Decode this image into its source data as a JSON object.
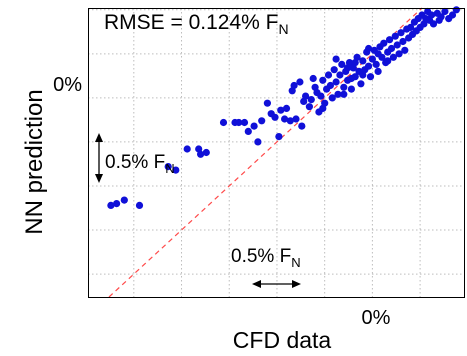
{
  "chart_data": {
    "type": "scatter",
    "title": "",
    "annotation": {
      "text": "RMSE = 0.124% F",
      "subscript": "N"
    },
    "xlabel": "CFD data",
    "ylabel": "NN prediction",
    "x_zero_label": "0%",
    "y_zero_label": "0%",
    "xlim": [
      -1.49,
      0.48
    ],
    "ylim": [
      -1.38,
      0.26
    ],
    "scale_bars": [
      {
        "orientation": "vertical",
        "text": "0.5% F",
        "subscript": "N",
        "length": 0.5
      },
      {
        "orientation": "horizontal",
        "text": "0.5% F",
        "subscript": "N",
        "length": 0.5
      }
    ],
    "reference_line": {
      "style": "dashed",
      "color": "#ff4a4a",
      "slope": 1,
      "intercept": 0
    },
    "grid": true,
    "marker_color": "#1010d8",
    "points": [
      [
        -1.37,
        -0.86
      ],
      [
        -1.34,
        -0.85
      ],
      [
        -1.3,
        -0.83
      ],
      [
        -1.22,
        -0.86
      ],
      [
        -1.07,
        -0.64
      ],
      [
        -1.03,
        -0.66
      ],
      [
        -0.97,
        -0.54
      ],
      [
        -0.91,
        -0.54
      ],
      [
        -0.9,
        -0.57
      ],
      [
        -0.87,
        -0.56
      ],
      [
        -0.78,
        -0.39
      ],
      [
        -0.72,
        -0.39
      ],
      [
        -0.7,
        -0.39
      ],
      [
        -0.67,
        -0.39
      ],
      [
        -0.65,
        -0.44
      ],
      [
        -0.62,
        -0.41
      ],
      [
        -0.6,
        -0.5
      ],
      [
        -0.58,
        -0.38
      ],
      [
        -0.55,
        -0.28
      ],
      [
        -0.53,
        -0.34
      ],
      [
        -0.51,
        -0.36
      ],
      [
        -0.49,
        -0.47
      ],
      [
        -0.48,
        -0.32
      ],
      [
        -0.46,
        -0.37
      ],
      [
        -0.45,
        -0.31
      ],
      [
        -0.43,
        -0.38
      ],
      [
        -0.42,
        -0.21
      ],
      [
        -0.41,
        -0.18
      ],
      [
        -0.4,
        -0.37
      ],
      [
        -0.38,
        -0.16
      ],
      [
        -0.37,
        -0.41
      ],
      [
        -0.35,
        -0.24
      ],
      [
        -0.33,
        -0.3
      ],
      [
        -0.32,
        -0.26
      ],
      [
        -0.3,
        -0.19
      ],
      [
        -0.29,
        -0.22
      ],
      [
        -0.28,
        -0.33
      ],
      [
        -0.27,
        -0.24
      ],
      [
        -0.26,
        -0.15
      ],
      [
        -0.25,
        -0.28
      ],
      [
        -0.24,
        -0.2
      ],
      [
        -0.23,
        -0.12
      ],
      [
        -0.22,
        -0.18
      ],
      [
        -0.21,
        -0.25
      ],
      [
        -0.2,
        -0.09
      ],
      [
        -0.19,
        -0.16
      ],
      [
        -0.18,
        -0.23
      ],
      [
        -0.17,
        -0.12
      ],
      [
        -0.16,
        -0.06
      ],
      [
        -0.15,
        -0.19
      ],
      [
        -0.14,
        -0.1
      ],
      [
        -0.13,
        -0.15
      ],
      [
        -0.12,
        -0.05
      ],
      [
        -0.11,
        -0.2
      ],
      [
        -0.1,
        -0.08
      ],
      [
        -0.09,
        -0.13
      ],
      [
        -0.08,
        -0.02
      ],
      [
        -0.07,
        -0.1
      ],
      [
        -0.06,
        -0.17
      ],
      [
        -0.05,
        -0.04
      ],
      [
        -0.04,
        -0.09
      ],
      [
        -0.03,
        0.01
      ],
      [
        -0.02,
        -0.07
      ],
      [
        -0.01,
        -0.13
      ],
      [
        0.0,
        -0.03
      ],
      [
        0.01,
        0.02
      ],
      [
        0.02,
        -0.06
      ],
      [
        0.03,
        -0.1
      ],
      [
        0.04,
        0.04
      ],
      [
        0.05,
        -0.02
      ],
      [
        0.06,
        0.06
      ],
      [
        0.07,
        -0.05
      ],
      [
        0.08,
        0.01
      ],
      [
        0.09,
        0.08
      ],
      [
        0.1,
        0.03
      ],
      [
        0.11,
        -0.02
      ],
      [
        0.12,
        0.1
      ],
      [
        0.13,
        0.05
      ],
      [
        0.14,
        0.0
      ],
      [
        0.15,
        0.12
      ],
      [
        0.16,
        0.07
      ],
      [
        0.17,
        0.02
      ],
      [
        0.18,
        0.14
      ],
      [
        0.19,
        0.09
      ],
      [
        0.2,
        0.15
      ],
      [
        0.21,
        0.11
      ],
      [
        0.22,
        0.18
      ],
      [
        0.23,
        0.13
      ],
      [
        0.24,
        0.2
      ],
      [
        0.25,
        0.15
      ],
      [
        0.26,
        0.22
      ],
      [
        0.27,
        0.17
      ],
      [
        0.28,
        0.2
      ],
      [
        0.29,
        0.24
      ],
      [
        0.3,
        0.19
      ],
      [
        0.31,
        0.22
      ],
      [
        0.32,
        0.17
      ],
      [
        0.34,
        0.23
      ],
      [
        0.35,
        0.19
      ],
      [
        0.36,
        0.21
      ],
      [
        0.38,
        0.24
      ],
      [
        0.4,
        0.2
      ],
      [
        0.42,
        0.22
      ],
      [
        0.44,
        0.25
      ],
      [
        -0.13,
        -0.08
      ],
      [
        -0.09,
        -0.05
      ],
      [
        -0.05,
        -0.12
      ],
      [
        -0.02,
        0.03
      ],
      [
        0.03,
        0.0
      ],
      [
        0.08,
        -0.04
      ],
      [
        -0.36,
        -0.27
      ],
      [
        -0.31,
        -0.14
      ],
      [
        -0.26,
        -0.31
      ],
      [
        -0.19,
        -0.03
      ],
      [
        -0.15,
        -0.23
      ],
      [
        -0.11,
        -0.14
      ]
    ]
  }
}
